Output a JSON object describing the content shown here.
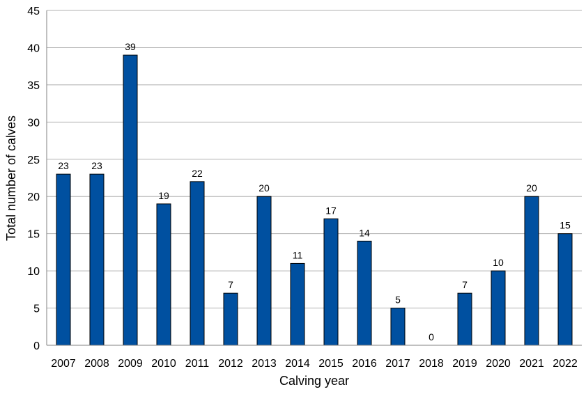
{
  "chart_data": {
    "type": "bar",
    "title": "",
    "xlabel": "Calving year",
    "ylabel": "Total number  of calves",
    "categories": [
      "2007",
      "2008",
      "2009",
      "2010",
      "2011",
      "2012",
      "2013",
      "2014",
      "2015",
      "2016",
      "2017",
      "2018",
      "2019",
      "2020",
      "2021",
      "2022"
    ],
    "values": [
      23,
      23,
      39,
      19,
      22,
      7,
      20,
      11,
      17,
      14,
      5,
      0,
      7,
      10,
      20,
      15
    ],
    "ylim": [
      0,
      45
    ],
    "yticks": [
      0,
      5,
      10,
      15,
      20,
      25,
      30,
      35,
      40,
      45
    ],
    "grid": true,
    "legend": "none",
    "bar_color": "#0050A0",
    "bar_border_color": "#000000",
    "grid_color": "#B0B0B0"
  }
}
